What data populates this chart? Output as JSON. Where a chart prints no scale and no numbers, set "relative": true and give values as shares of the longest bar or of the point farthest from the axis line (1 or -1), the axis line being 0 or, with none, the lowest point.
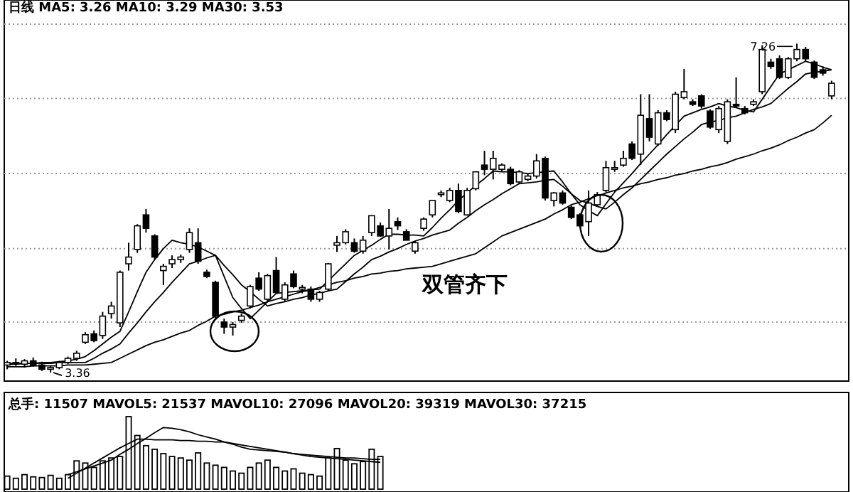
{
  "chart_data": [
    {
      "type": "candlestick",
      "title": "日线 MA5: 3.26 MA10: 3.29 MA30: 3.53",
      "categories": [
        null,
        null,
        null,
        null,
        null,
        null,
        null,
        null,
        null,
        null,
        null,
        null,
        null,
        null,
        null,
        null,
        null,
        null,
        null,
        null,
        null,
        null,
        null,
        null,
        null,
        null,
        null,
        null,
        null,
        null,
        null,
        null,
        null,
        null,
        null,
        null,
        null,
        null,
        null,
        null,
        null,
        null,
        null,
        null,
        null,
        null,
        null,
        null,
        null,
        null,
        null,
        null,
        null,
        null,
        null,
        null,
        null,
        null,
        null,
        null,
        null,
        null,
        null,
        null,
        null,
        null,
        null,
        null,
        null,
        null,
        null,
        null,
        null,
        null,
        null,
        null,
        null,
        null,
        null,
        null,
        null,
        null,
        null,
        null,
        null,
        null,
        null,
        null,
        null,
        null,
        null,
        null,
        null,
        null,
        null,
        null
      ],
      "ohlc": [
        [
          3.45,
          3.5,
          3.4,
          3.48
        ],
        [
          3.48,
          3.53,
          3.44,
          3.46
        ],
        [
          3.46,
          3.52,
          3.42,
          3.5
        ],
        [
          3.5,
          3.54,
          3.43,
          3.45
        ],
        [
          3.45,
          3.49,
          3.38,
          3.4
        ],
        [
          3.4,
          3.44,
          3.36,
          3.42
        ],
        [
          3.42,
          3.5,
          3.4,
          3.48
        ],
        [
          3.48,
          3.55,
          3.46,
          3.53
        ],
        [
          3.53,
          3.62,
          3.5,
          3.59
        ],
        [
          3.72,
          3.84,
          3.7,
          3.81
        ],
        [
          3.82,
          3.86,
          3.72,
          3.74
        ],
        [
          3.8,
          4.08,
          3.76,
          4.03
        ],
        [
          4.06,
          4.2,
          4.0,
          4.15
        ],
        [
          3.95,
          4.57,
          3.9,
          4.55
        ],
        [
          4.65,
          4.9,
          4.57,
          4.73
        ],
        [
          4.82,
          5.12,
          4.78,
          5.1
        ],
        [
          5.23,
          5.3,
          5.02,
          5.07
        ],
        [
          4.98,
          5.0,
          4.7,
          4.73
        ],
        [
          4.57,
          4.65,
          4.4,
          4.62
        ],
        [
          4.65,
          4.75,
          4.6,
          4.7
        ],
        [
          4.7,
          4.76,
          4.66,
          4.73
        ],
        [
          4.82,
          5.07,
          4.78,
          5.02
        ],
        [
          4.9,
          5.07,
          4.65,
          4.68
        ],
        [
          4.55,
          4.58,
          4.48,
          4.5
        ],
        [
          4.43,
          4.45,
          4.0,
          4.03
        ],
        [
          3.96,
          4.0,
          3.82,
          3.9
        ],
        [
          3.9,
          3.96,
          3.8,
          3.93
        ],
        [
          3.98,
          4.06,
          3.95,
          4.03
        ],
        [
          4.15,
          4.4,
          4.12,
          4.38
        ],
        [
          4.48,
          4.55,
          4.33,
          4.35
        ],
        [
          4.23,
          4.53,
          4.2,
          4.51
        ],
        [
          4.57,
          4.73,
          4.3,
          4.31
        ],
        [
          4.23,
          4.43,
          4.2,
          4.4
        ],
        [
          4.53,
          4.57,
          4.36,
          4.38
        ],
        [
          4.35,
          4.4,
          4.3,
          4.37
        ],
        [
          4.35,
          4.38,
          4.2,
          4.23
        ],
        [
          4.23,
          4.33,
          4.2,
          4.31
        ],
        [
          4.35,
          4.66,
          4.33,
          4.65
        ],
        [
          4.87,
          4.98,
          4.79,
          4.9
        ],
        [
          4.9,
          5.06,
          4.88,
          5.03
        ],
        [
          4.9,
          4.95,
          4.78,
          4.8
        ],
        [
          4.8,
          4.98,
          4.77,
          4.93
        ],
        [
          5.02,
          5.22,
          4.98,
          5.22
        ],
        [
          5.1,
          5.14,
          4.97,
          4.98
        ],
        [
          4.98,
          5.3,
          4.82,
          5.07
        ],
        [
          5.15,
          5.2,
          5.05,
          5.1
        ],
        [
          5.03,
          5.06,
          4.93,
          4.93
        ],
        [
          4.8,
          4.92,
          4.77,
          4.9
        ],
        [
          5.07,
          5.2,
          5.04,
          5.18
        ],
        [
          5.23,
          5.4,
          5.2,
          5.4
        ],
        [
          5.47,
          5.52,
          5.44,
          5.49
        ],
        [
          5.4,
          5.55,
          5.38,
          5.52
        ],
        [
          5.52,
          5.6,
          5.25,
          5.27
        ],
        [
          5.23,
          5.55,
          5.22,
          5.52
        ],
        [
          5.54,
          5.74,
          5.52,
          5.74
        ],
        [
          5.82,
          5.99,
          5.7,
          5.77
        ],
        [
          5.77,
          5.99,
          5.65,
          5.9
        ],
        [
          5.77,
          5.84,
          5.74,
          5.82
        ],
        [
          5.77,
          5.8,
          5.58,
          5.6
        ],
        [
          5.62,
          5.76,
          5.6,
          5.74
        ],
        [
          5.65,
          5.72,
          5.63,
          5.69
        ],
        [
          5.69,
          5.95,
          5.66,
          5.87
        ],
        [
          5.9,
          5.92,
          5.4,
          5.43
        ],
        [
          5.4,
          5.5,
          5.33,
          5.49
        ],
        [
          5.49,
          5.52,
          5.35,
          5.37
        ],
        [
          5.32,
          5.34,
          5.18,
          5.2
        ],
        [
          5.23,
          5.25,
          5.08,
          5.1
        ],
        [
          5.15,
          5.52,
          4.98,
          5.37
        ],
        [
          5.35,
          5.5,
          5.33,
          5.47
        ],
        [
          5.52,
          5.87,
          5.5,
          5.79
        ],
        [
          5.77,
          5.87,
          5.74,
          5.79
        ],
        [
          5.82,
          5.99,
          5.8,
          5.9
        ],
        [
          6.07,
          6.1,
          5.88,
          5.9
        ],
        [
          5.95,
          6.66,
          5.82,
          6.41
        ],
        [
          6.37,
          6.66,
          6.1,
          6.15
        ],
        [
          6.07,
          6.47,
          6.05,
          6.44
        ],
        [
          6.44,
          6.47,
          6.34,
          6.36
        ],
        [
          6.24,
          6.69,
          6.2,
          6.66
        ],
        [
          6.62,
          6.96,
          6.6,
          6.69
        ],
        [
          6.57,
          6.6,
          6.52,
          6.54
        ],
        [
          6.64,
          6.66,
          6.49,
          6.52
        ],
        [
          6.46,
          6.48,
          6.25,
          6.27
        ],
        [
          6.24,
          6.52,
          6.2,
          6.49
        ],
        [
          6.1,
          6.6,
          6.07,
          6.57
        ],
        [
          6.54,
          6.86,
          6.5,
          6.52
        ],
        [
          6.49,
          6.52,
          6.42,
          6.44
        ],
        [
          6.54,
          6.6,
          6.52,
          6.57
        ],
        [
          6.69,
          7.24,
          6.66,
          7.19
        ],
        [
          7.04,
          7.08,
          6.96,
          6.99
        ],
        [
          7.08,
          7.12,
          6.84,
          6.86
        ],
        [
          6.86,
          7.1,
          6.84,
          7.08
        ],
        [
          7.08,
          7.26,
          7.05,
          7.19
        ],
        [
          7.19,
          7.22,
          7.05,
          7.08
        ],
        [
          7.04,
          7.06,
          6.84,
          6.86
        ],
        [
          6.95,
          6.99,
          6.88,
          6.91
        ],
        [
          6.64,
          6.82,
          6.6,
          6.79
        ]
      ],
      "series": [
        {
          "type": "line",
          "color": "#000000",
          "values": [
            3.46,
            3.46,
            3.47,
            3.47,
            3.48,
            3.48,
            3.49,
            3.5,
            3.52,
            3.55,
            3.62,
            3.7,
            3.78,
            3.85,
            4.08,
            4.32,
            4.55,
            4.7,
            4.83,
            4.93,
            4.9,
            4.88,
            4.85,
            4.8,
            4.75,
            4.5,
            4.25,
            4.12,
            4.0,
            4.1,
            4.2,
            4.3,
            4.31,
            4.32,
            4.33,
            4.34,
            4.35,
            4.45,
            4.55,
            4.65,
            4.75,
            4.81,
            4.87,
            4.94,
            5.0,
            5.0,
            4.99,
            4.99,
            4.98,
            5.08,
            5.19,
            5.29,
            5.4,
            5.49,
            5.58,
            5.66,
            5.75,
            5.74,
            5.74,
            5.73,
            5.72,
            5.73,
            5.74,
            5.75,
            5.62,
            5.48,
            5.35,
            5.28,
            5.22,
            5.36,
            5.5,
            5.61,
            5.72,
            5.84,
            5.95,
            6.06,
            6.18,
            6.29,
            6.4,
            6.44,
            6.48,
            6.51,
            6.55,
            6.52,
            6.5,
            6.47,
            6.45,
            6.6,
            6.75,
            6.9,
            6.95,
            7.0,
            7.05,
            7.02,
            6.98,
            6.95
          ]
        },
        {
          "type": "line",
          "color": "#000000",
          "values": [
            3.47,
            3.47,
            3.47,
            3.47,
            3.47,
            3.47,
            3.48,
            3.48,
            3.48,
            3.48,
            3.53,
            3.59,
            3.64,
            3.7,
            3.83,
            3.95,
            4.08,
            4.2,
            4.31,
            4.43,
            4.54,
            4.65,
            4.68,
            4.72,
            4.75,
            4.63,
            4.52,
            4.4,
            4.32,
            4.23,
            4.15,
            4.18,
            4.2,
            4.23,
            4.25,
            4.28,
            4.3,
            4.33,
            4.35,
            4.44,
            4.53,
            4.61,
            4.7,
            4.74,
            4.79,
            4.83,
            4.88,
            4.92,
            4.95,
            4.99,
            5.02,
            5.05,
            5.13,
            5.2,
            5.28,
            5.35,
            5.41,
            5.48,
            5.54,
            5.6,
            5.61,
            5.62,
            5.64,
            5.65,
            5.57,
            5.48,
            5.4,
            5.37,
            5.33,
            5.3,
            5.38,
            5.47,
            5.55,
            5.65,
            5.75,
            5.85,
            5.95,
            6.04,
            6.13,
            6.21,
            6.3,
            6.33,
            6.35,
            6.38,
            6.4,
            6.44,
            6.48,
            6.51,
            6.55,
            6.64,
            6.73,
            6.81,
            6.9,
            6.92,
            6.93,
            6.95
          ]
        },
        {
          "type": "line",
          "color": "#000000",
          "values": [
            3.43,
            3.43,
            3.43,
            3.44,
            3.44,
            3.44,
            3.44,
            3.45,
            3.45,
            3.45,
            3.46,
            3.47,
            3.48,
            3.53,
            3.58,
            3.63,
            3.68,
            3.72,
            3.75,
            3.79,
            3.83,
            3.86,
            3.92,
            3.97,
            4.03,
            4.05,
            4.08,
            4.1,
            4.13,
            4.16,
            4.2,
            4.23,
            4.26,
            4.29,
            4.32,
            4.34,
            4.37,
            4.4,
            4.43,
            4.45,
            4.48,
            4.5,
            4.53,
            4.54,
            4.56,
            4.57,
            4.59,
            4.6,
            4.61,
            4.62,
            4.65,
            4.68,
            4.71,
            4.74,
            4.77,
            4.84,
            4.91,
            4.98,
            5.02,
            5.06,
            5.1,
            5.14,
            5.18,
            5.24,
            5.29,
            5.35,
            5.38,
            5.42,
            5.45,
            5.49,
            5.52,
            5.55,
            5.57,
            5.6,
            5.62,
            5.65,
            5.67,
            5.7,
            5.72,
            5.75,
            5.77,
            5.8,
            5.82,
            5.85,
            5.89,
            5.92,
            5.95,
            5.99,
            6.02,
            6.06,
            6.11,
            6.15,
            6.2,
            6.24,
            6.32,
            6.41
          ]
        }
      ],
      "ylim": [
        3.26,
        7.49
      ],
      "yticks": [
        {
          "value": 3.96,
          "label": null
        },
        {
          "value": 4.83,
          "label": null
        },
        {
          "value": 5.72,
          "label": null
        },
        {
          "value": 6.61,
          "label": null
        },
        {
          "value": 7.49,
          "label": null
        }
      ],
      "grid": "y",
      "annotations": [
        "双管齐下",
        {
          "text": "7.26",
          "y": 7.26
        },
        {
          "text": "3.36",
          "y": 3.36
        }
      ]
    },
    {
      "type": "bar",
      "relative": true,
      "title": "总手: 11507 MAVOL5: 21537 MAVOL10: 27096 MAVOL20: 39319 MAVOL30: 37215",
      "categories": [
        null,
        null,
        null,
        null,
        null,
        null,
        null,
        null,
        null,
        null,
        null,
        null,
        null,
        null,
        null,
        null,
        null,
        null,
        null,
        null,
        null,
        null,
        null,
        null,
        null,
        null,
        null,
        null,
        null,
        null,
        null,
        null,
        null,
        null,
        null,
        null,
        null,
        null,
        null,
        null,
        null,
        null,
        null,
        null,
        null,
        null,
        null,
        null,
        null,
        null,
        null,
        null,
        null,
        null,
        null,
        null,
        null,
        null,
        null,
        null,
        null,
        null,
        null,
        null,
        null,
        null,
        null,
        null,
        null,
        null,
        null,
        null,
        null,
        null,
        null,
        null,
        null,
        null,
        null,
        null,
        null,
        null,
        null,
        null,
        null,
        null,
        null,
        null,
        null,
        null,
        null,
        null,
        null,
        null,
        null,
        null
      ],
      "values": [
        0.18,
        0.15,
        0.2,
        0.17,
        0.16,
        0.19,
        0.15,
        0.2,
        0.39,
        0.36,
        0.3,
        0.39,
        0.43,
        0.45,
        1,
        0.74,
        0.6,
        0.55,
        0.49,
        0.45,
        0.43,
        0.4,
        0.5,
        0.36,
        0.33,
        0.3,
        0.25,
        0.22,
        0.3,
        0.36,
        0.4,
        0.3,
        0.25,
        0.28,
        0.22,
        0.2,
        0.18,
        0.43,
        0.56,
        0.4,
        0.35,
        0.38,
        0.55,
        0.45,
        null,
        null,
        null,
        null,
        null,
        null,
        null,
        null,
        null,
        null,
        null,
        null,
        null,
        null,
        null,
        null,
        null,
        null,
        null,
        null,
        null,
        null,
        null,
        null,
        null,
        null,
        null,
        null,
        null,
        null,
        null,
        null,
        null,
        null,
        null,
        null,
        null,
        null,
        null,
        null,
        null,
        null,
        null,
        null,
        null,
        null,
        null,
        null,
        null,
        null,
        null,
        null
      ],
      "series": [
        {
          "type": "line",
          "color": "#000000",
          "values": [
            null,
            null,
            null,
            null,
            null,
            null,
            null,
            0.2,
            0.24,
            0.28,
            0.32,
            0.36,
            0.4,
            0.48,
            0.55,
            0.63,
            0.7,
            0.78,
            0.85,
            0.84,
            0.82,
            0.79,
            0.75,
            0.72,
            0.69,
            0.65,
            0.62,
            0.58,
            0.55,
            0.54,
            0.53,
            0.52,
            0.51,
            0.49,
            0.48,
            0.47,
            0.46,
            0.45,
            0.44,
            0.43,
            0.43,
            0.42,
            0.41,
            0.41,
            null,
            null,
            null,
            null,
            null,
            null,
            null,
            null,
            null,
            null,
            null,
            null,
            null,
            null,
            null,
            null,
            null,
            null,
            null,
            null,
            null,
            null,
            null,
            null,
            null,
            null,
            null,
            null,
            null,
            null,
            null,
            null,
            null,
            null,
            null,
            null,
            null,
            null,
            null,
            null,
            null,
            null,
            null,
            null,
            null,
            null,
            null,
            null,
            null,
            null,
            null,
            null
          ]
        },
        {
          "type": "line",
          "color": "#000000",
          "values": [
            null,
            null,
            null,
            null,
            null,
            null,
            null,
            0.15,
            0.22,
            0.29,
            0.36,
            0.43,
            0.5,
            0.57,
            0.63,
            0.69,
            0.69,
            0.68,
            0.68,
            0.68,
            0.67,
            0.67,
            0.66,
            0.66,
            0.65,
            0.65,
            0.63,
            0.61,
            0.59,
            0.57,
            0.55,
            0.53,
            0.51,
            0.49,
            0.47,
            0.45,
            0.44,
            0.43,
            0.42,
            0.41,
            0.4,
            0.39,
            0.38,
            0.37,
            null,
            null,
            null,
            null,
            null,
            null,
            null,
            null,
            null,
            null,
            null,
            null,
            null,
            null,
            null,
            null,
            null,
            null,
            null,
            null,
            null,
            null,
            null,
            null,
            null,
            null,
            null,
            null,
            null,
            null,
            null,
            null,
            null,
            null,
            null,
            null,
            null,
            null,
            null,
            null,
            null,
            null,
            null,
            null,
            null,
            null,
            null,
            null,
            null,
            null,
            null,
            null
          ]
        }
      ]
    }
  ]
}
